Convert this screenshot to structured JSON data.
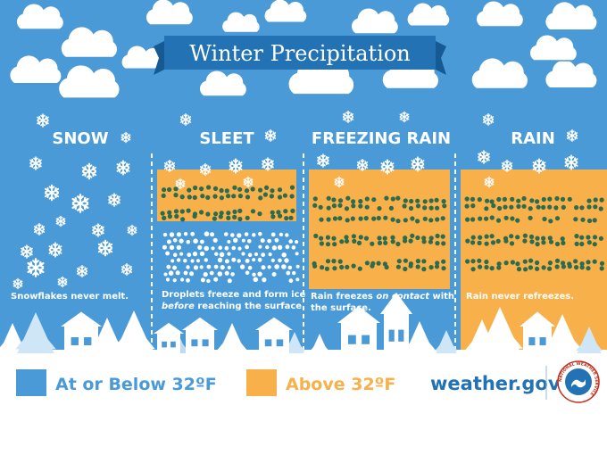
{
  "title": "Winter Precipitation",
  "columns": [
    {
      "heading": "SNOW",
      "caption": [
        "Snowflakes never melt."
      ]
    },
    {
      "heading": "SLEET",
      "caption": [
        "Droplets freeze and form ice",
        "before reaching the surface."
      ],
      "caption_emphasis": "before"
    },
    {
      "heading": "FREEZING RAIN",
      "caption": [
        "Rain freezes on contact with",
        "the surface."
      ],
      "caption_emphasis": "on contact"
    },
    {
      "heading": "RAIN",
      "caption": [
        "Rain never refreezes."
      ]
    }
  ],
  "legend": [
    {
      "label": "At or Below 32ºF",
      "color": "#4a9ad8"
    },
    {
      "label": "Above 32ºF",
      "color": "#f7b04a"
    }
  ],
  "website": "weather.gov",
  "logo_text": "NATIONAL WEATHER SERVICE",
  "colors": {
    "sky": "#4a9ad8",
    "warm": "#f7b04a",
    "drop": "#2c6b4f",
    "title_bar": "#2272b4"
  }
}
